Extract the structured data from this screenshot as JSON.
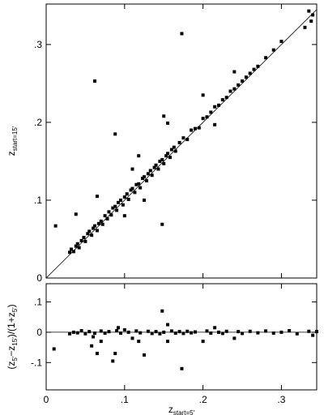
{
  "chart_data": [
    {
      "type": "scatter",
      "y_label": [
        {
          "text": "z",
          "sub": "start=15′"
        }
      ],
      "color": "#000000",
      "xlim": [
        0,
        0.345
      ],
      "ylim": [
        0,
        0.352
      ],
      "xticks": [
        0,
        0.1,
        0.2,
        0.3
      ],
      "yticks": [
        0,
        {
          "value": 0.1,
          "label": ".1"
        },
        {
          "value": 0.2,
          "label": ".2"
        },
        {
          "value": 0.3,
          "label": ".3"
        }
      ],
      "x": [
        0.03,
        0.032,
        0.035,
        0.038,
        0.04,
        0.042,
        0.045,
        0.048,
        0.05,
        0.053,
        0.055,
        0.058,
        0.06,
        0.062,
        0.065,
        0.067,
        0.07,
        0.072,
        0.075,
        0.078,
        0.08,
        0.083,
        0.085,
        0.088,
        0.09,
        0.092,
        0.095,
        0.098,
        0.1,
        0.103,
        0.105,
        0.108,
        0.11,
        0.113,
        0.115,
        0.118,
        0.12,
        0.123,
        0.125,
        0.128,
        0.13,
        0.133,
        0.135,
        0.138,
        0.14,
        0.143,
        0.145,
        0.148,
        0.15,
        0.153,
        0.155,
        0.158,
        0.16,
        0.163,
        0.165,
        0.17,
        0.175,
        0.18,
        0.185,
        0.19,
        0.195,
        0.2,
        0.205,
        0.21,
        0.215,
        0.22,
        0.225,
        0.23,
        0.235,
        0.24,
        0.245,
        0.25,
        0.255,
        0.26,
        0.265,
        0.27,
        0.28,
        0.29,
        0.3,
        0.335,
        0.34,
        0.338,
        0.33,
        0.012,
        0.038,
        0.062,
        0.065,
        0.088,
        0.11,
        0.118,
        0.148,
        0.155,
        0.15,
        0.173,
        0.2,
        0.24,
        0.215,
        0.125,
        0.1
      ],
      "y": [
        0.033,
        0.037,
        0.034,
        0.041,
        0.044,
        0.039,
        0.048,
        0.052,
        0.047,
        0.057,
        0.06,
        0.055,
        0.064,
        0.067,
        0.061,
        0.07,
        0.073,
        0.069,
        0.08,
        0.076,
        0.085,
        0.081,
        0.09,
        0.092,
        0.087,
        0.097,
        0.1,
        0.094,
        0.104,
        0.108,
        0.101,
        0.113,
        0.115,
        0.11,
        0.12,
        0.121,
        0.116,
        0.128,
        0.13,
        0.125,
        0.134,
        0.138,
        0.132,
        0.142,
        0.145,
        0.14,
        0.15,
        0.152,
        0.147,
        0.157,
        0.16,
        0.155,
        0.165,
        0.168,
        0.163,
        0.174,
        0.18,
        0.178,
        0.19,
        0.192,
        0.193,
        0.205,
        0.207,
        0.213,
        0.22,
        0.222,
        0.229,
        0.232,
        0.24,
        0.243,
        0.248,
        0.253,
        0.258,
        0.263,
        0.268,
        0.272,
        0.283,
        0.293,
        0.304,
        0.343,
        0.338,
        0.33,
        0.322,
        0.067,
        0.082,
        0.253,
        0.105,
        0.185,
        0.14,
        0.157,
        0.069,
        0.199,
        0.208,
        0.314,
        0.235,
        0.265,
        0.197,
        0.1,
        0.08
      ]
    },
    {
      "type": "scatter",
      "y_label": [
        {
          "text": "(z",
          "sub": "5′"
        },
        {
          "text": "−z",
          "sub": "15′"
        },
        {
          "text": ")/(1+z",
          "sub": "5′"
        },
        {
          "text": ")"
        }
      ],
      "x_label": [
        {
          "text": "z",
          "sub": "start=5′"
        }
      ],
      "color": "#000000",
      "xlim": [
        0,
        0.345
      ],
      "ylim": [
        -0.19,
        0.16
      ],
      "xticks": [
        0,
        {
          "value": 0.1,
          "label": ".1"
        },
        {
          "value": 0.2,
          "label": ".2"
        },
        {
          "value": 0.3,
          "label": ".3"
        }
      ],
      "yticks": [
        {
          "value": -0.1,
          "label": "-.1"
        },
        0,
        {
          "value": 0.1,
          "label": ".1"
        }
      ],
      "x": [
        0.01,
        0.03,
        0.035,
        0.04,
        0.045,
        0.05,
        0.055,
        0.06,
        0.062,
        0.065,
        0.07,
        0.075,
        0.08,
        0.085,
        0.088,
        0.09,
        0.095,
        0.1,
        0.105,
        0.11,
        0.115,
        0.118,
        0.12,
        0.125,
        0.13,
        0.135,
        0.14,
        0.145,
        0.148,
        0.15,
        0.155,
        0.16,
        0.165,
        0.17,
        0.173,
        0.175,
        0.18,
        0.185,
        0.19,
        0.2,
        0.205,
        0.21,
        0.215,
        0.22,
        0.225,
        0.23,
        0.24,
        0.245,
        0.25,
        0.26,
        0.27,
        0.28,
        0.29,
        0.3,
        0.31,
        0.32,
        0.335,
        0.34,
        0.345,
        0.092,
        0.058,
        0.07,
        0.155
      ],
      "y": [
        -0.055,
        -0.005,
        0.0,
        -0.002,
        0.005,
        -0.005,
        0.002,
        -0.015,
        -0.003,
        -0.07,
        0.004,
        -0.003,
        0.002,
        -0.095,
        -0.07,
        0.005,
        -0.003,
        0.008,
        0.0,
        -0.02,
        0.004,
        -0.03,
        -0.002,
        -0.075,
        0.003,
        -0.004,
        0.002,
        -0.005,
        0.07,
        0.0,
        -0.03,
        0.004,
        -0.003,
        0.002,
        -0.12,
        -0.004,
        0.003,
        -0.002,
        0.001,
        -0.03,
        0.004,
        -0.003,
        0.015,
        0.0,
        -0.004,
        0.003,
        -0.02,
        0.002,
        -0.004,
        0.003,
        -0.002,
        0.004,
        -0.003,
        0.0,
        0.005,
        -0.005,
        0.003,
        -0.01,
        0.002,
        0.015,
        -0.045,
        -0.03,
        0.025
      ]
    }
  ]
}
